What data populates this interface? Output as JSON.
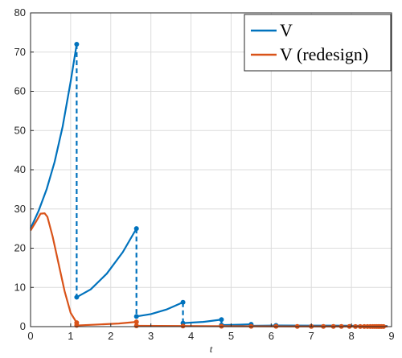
{
  "chart_data": {
    "type": "line",
    "xlabel": "t",
    "ylabel": "",
    "xlim": [
      0,
      9
    ],
    "ylim": [
      0,
      80
    ],
    "xticks": [
      0,
      1,
      2,
      3,
      4,
      5,
      6,
      7,
      8,
      9
    ],
    "yticks": [
      0,
      10,
      20,
      30,
      40,
      50,
      60,
      70,
      80
    ],
    "grid": true,
    "legend_position": "top-right",
    "colors": {
      "V": "#0072BD",
      "V_redesign": "#D95319"
    },
    "series": [
      {
        "name": "V",
        "segments": [
          [
            [
              0,
              25.0
            ],
            [
              0.2,
              29.5
            ],
            [
              0.4,
              35.0
            ],
            [
              0.6,
              42.0
            ],
            [
              0.8,
              51.0
            ],
            [
              1.0,
              62.5
            ],
            [
              1.15,
              72.0
            ]
          ],
          [
            [
              1.15,
              7.5
            ],
            [
              1.5,
              9.5
            ],
            [
              1.9,
              13.5
            ],
            [
              2.3,
              19.0
            ],
            [
              2.64,
              25.0
            ]
          ],
          [
            [
              2.64,
              2.6
            ],
            [
              3.0,
              3.2
            ],
            [
              3.4,
              4.4
            ],
            [
              3.8,
              6.2
            ]
          ],
          [
            [
              3.8,
              0.9
            ],
            [
              4.3,
              1.2
            ],
            [
              4.76,
              1.8
            ]
          ],
          [
            [
              4.76,
              0.4
            ],
            [
              5.2,
              0.5
            ],
            [
              5.5,
              0.6
            ]
          ],
          [
            [
              5.5,
              0.2
            ],
            [
              6.2,
              0.3
            ],
            [
              7.5,
              0.25
            ],
            [
              8.9,
              0.15
            ]
          ]
        ],
        "jumps": [
          {
            "t": 1.15,
            "from": 72.0,
            "to": 7.5
          },
          {
            "t": 2.64,
            "from": 25.0,
            "to": 2.6
          },
          {
            "t": 3.8,
            "from": 6.2,
            "to": 0.9
          },
          {
            "t": 4.76,
            "from": 1.8,
            "to": 0.4
          },
          {
            "t": 5.5,
            "from": 0.6,
            "to": 0.2
          }
        ],
        "markers": [
          [
            1.15,
            72.0
          ],
          [
            1.15,
            7.5
          ],
          [
            2.64,
            25.0
          ],
          [
            2.64,
            2.6
          ],
          [
            3.8,
            6.2
          ],
          [
            3.8,
            0.9
          ],
          [
            4.76,
            1.8
          ],
          [
            4.76,
            0.4
          ],
          [
            5.5,
            0.6
          ],
          [
            5.5,
            0.2
          ],
          [
            6.12,
            0.3
          ]
        ]
      },
      {
        "name": "V (redesign)",
        "segments": [
          [
            [
              0,
              24.5
            ],
            [
              0.15,
              27.0
            ],
            [
              0.25,
              28.8
            ],
            [
              0.35,
              28.9
            ],
            [
              0.42,
              28.0
            ],
            [
              0.55,
              23.0
            ],
            [
              0.7,
              16.0
            ],
            [
              0.85,
              9.0
            ],
            [
              1.0,
              3.5
            ],
            [
              1.15,
              1.0
            ]
          ],
          [
            [
              1.15,
              0.3
            ],
            [
              1.6,
              0.5
            ],
            [
              2.2,
              0.8
            ],
            [
              2.64,
              1.2
            ]
          ],
          [
            [
              2.64,
              0.2
            ],
            [
              3.8,
              0.15
            ],
            [
              5.0,
              0.1
            ],
            [
              6.5,
              0.05
            ],
            [
              8.9,
              0.02
            ]
          ]
        ],
        "markers": [
          [
            1.15,
            1.0
          ],
          [
            1.15,
            0.3
          ],
          [
            2.64,
            1.2
          ],
          [
            2.64,
            0.2
          ],
          [
            3.8,
            0.15
          ],
          [
            4.76,
            0.1
          ],
          [
            5.5,
            0.08
          ],
          [
            6.12,
            0.07
          ],
          [
            6.65,
            0.06
          ],
          [
            7.0,
            0.05
          ],
          [
            7.3,
            0.05
          ],
          [
            7.55,
            0.04
          ],
          [
            7.75,
            0.04
          ],
          [
            7.95,
            0.04
          ],
          [
            8.1,
            0.03
          ],
          [
            8.22,
            0.03
          ],
          [
            8.32,
            0.03
          ],
          [
            8.4,
            0.03
          ],
          [
            8.47,
            0.03
          ],
          [
            8.53,
            0.02
          ],
          [
            8.58,
            0.02
          ],
          [
            8.63,
            0.02
          ],
          [
            8.67,
            0.02
          ],
          [
            8.71,
            0.02
          ],
          [
            8.75,
            0.02
          ],
          [
            8.8,
            0.02
          ]
        ]
      }
    ]
  }
}
